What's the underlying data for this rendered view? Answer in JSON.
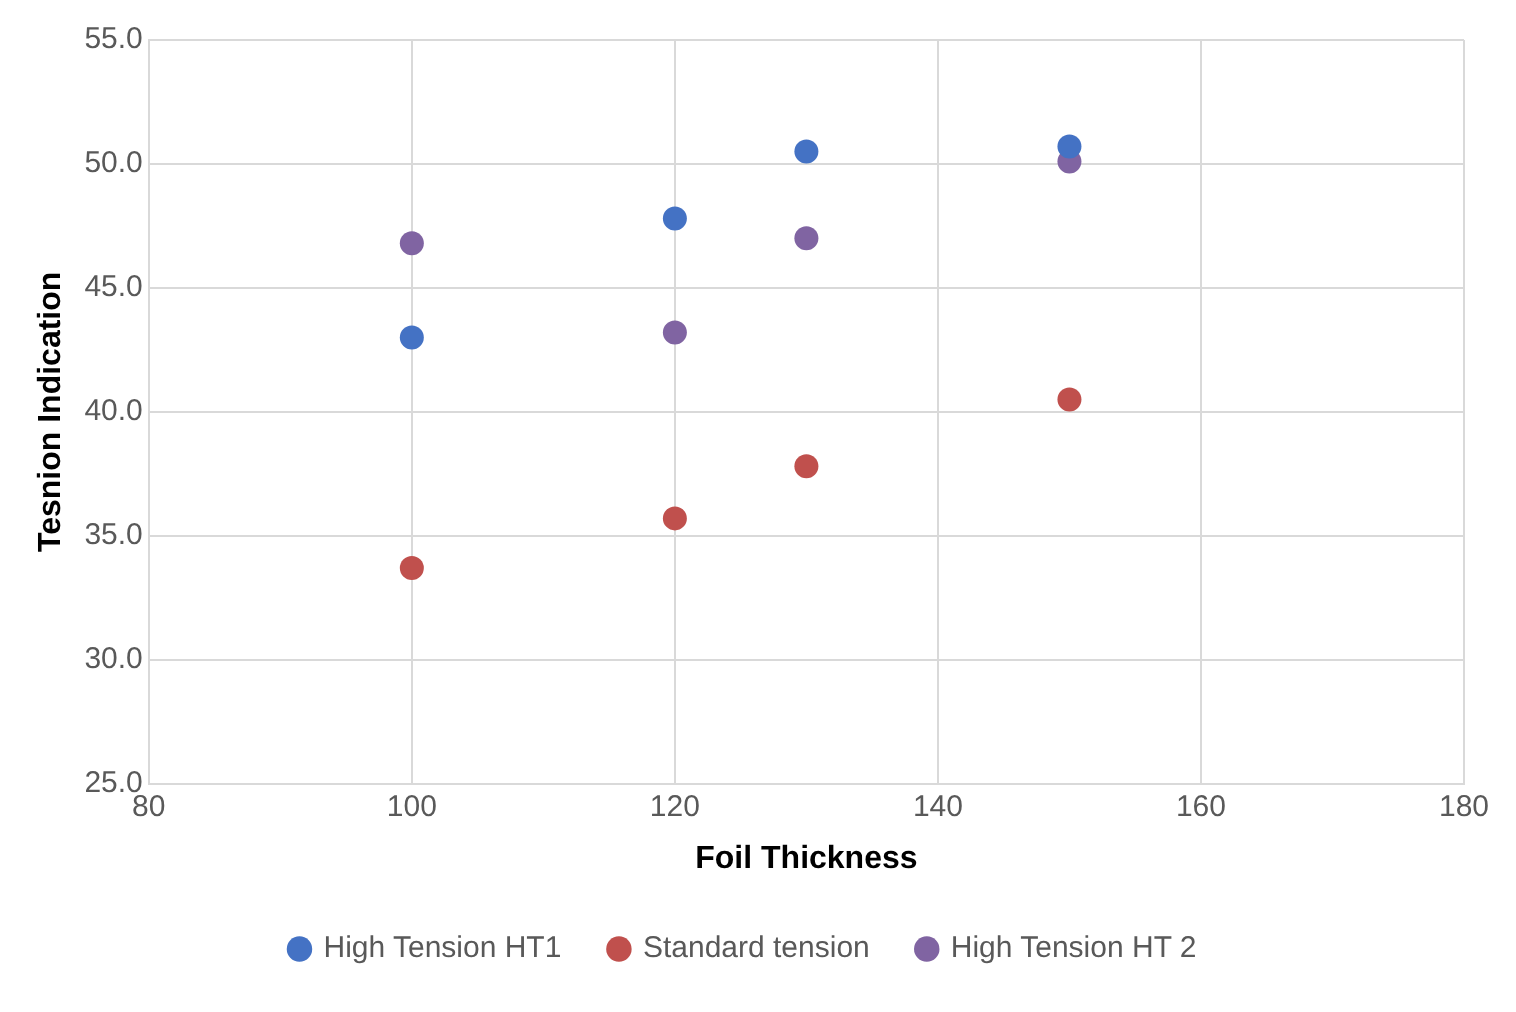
{
  "chart_data": {
    "type": "scatter",
    "xlabel": "Foil Thickness",
    "ylabel": "Tesnion Indication",
    "xlim": [
      80,
      180
    ],
    "xticks": [
      80,
      100,
      120,
      140,
      160,
      180
    ],
    "ylim": [
      25,
      55
    ],
    "yticks": [
      {
        "value": 25,
        "label": "25.0"
      },
      {
        "value": 30,
        "label": "30.0"
      },
      {
        "value": 35,
        "label": "35.0"
      },
      {
        "value": 40,
        "label": "40.0"
      },
      {
        "value": 45,
        "label": "45.0"
      },
      {
        "value": 50,
        "label": "50.0"
      },
      {
        "value": 55,
        "label": "55.0"
      }
    ],
    "grid": true,
    "legend": "bottom",
    "marker": "circle",
    "series": [
      {
        "name": "High Tension HT1",
        "color": "#4472c4",
        "x": [
          100,
          120,
          130,
          150
        ],
        "values": [
          43.0,
          47.8,
          50.5,
          50.7
        ]
      },
      {
        "name": "Standard tension",
        "color": "#c0504d",
        "x": [
          100,
          120,
          130,
          150
        ],
        "values": [
          33.7,
          35.7,
          37.8,
          40.5
        ]
      },
      {
        "name": "High Tension HT 2",
        "color": "#8064a2",
        "x": [
          100,
          120,
          130,
          150
        ],
        "values": [
          46.8,
          43.2,
          47.0,
          50.1
        ]
      }
    ]
  }
}
